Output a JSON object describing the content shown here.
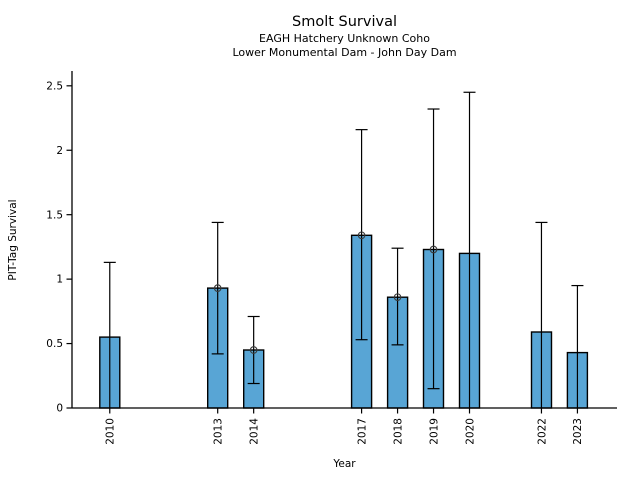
{
  "chart_data": {
    "type": "bar",
    "title": "Smolt Survival",
    "subtitle1": "EAGH Hatchery Unknown Coho",
    "subtitle2": "Lower Monumental Dam - John Day Dam",
    "xlabel": "Year",
    "ylabel": "PIT-Tag Survival",
    "categories": [
      "2010",
      "2013",
      "2014",
      "2017",
      "2018",
      "2019",
      "2020",
      "2022",
      "2023"
    ],
    "x_numeric": [
      2010,
      2013,
      2014,
      2017,
      2018,
      2019,
      2020,
      2022,
      2023
    ],
    "values": [
      0.55,
      0.93,
      0.45,
      1.34,
      0.86,
      1.23,
      1.2,
      0.59,
      0.43
    ],
    "ci_upper": [
      1.13,
      1.44,
      0.71,
      2.16,
      1.24,
      2.32,
      2.45,
      1.44,
      0.95
    ],
    "ci_lower": [
      null,
      0.42,
      0.19,
      0.53,
      0.49,
      0.15,
      null,
      null,
      null
    ],
    "point_marker": [
      false,
      true,
      true,
      true,
      true,
      true,
      false,
      false,
      false
    ],
    "yticks": [
      0,
      0.5,
      1,
      1.5,
      2,
      2.5
    ],
    "ytick_labels": [
      "0",
      "0.5",
      "1",
      "1.5",
      "2",
      "2.5"
    ],
    "ylim": [
      0,
      2.615
    ],
    "xlim": [
      2008.95,
      2024.1
    ],
    "grid": false,
    "legend": null,
    "bar_color": "#58A5D5",
    "bar_edge_color": "#000000",
    "error_color": "#000000",
    "marker_edge_color": "#3a3a3a",
    "axis_color": "#000000",
    "background_color": "#ffffff"
  }
}
